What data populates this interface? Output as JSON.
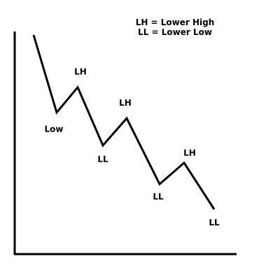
{
  "legend": {
    "line1": "LH = Lower High",
    "line2": "LL = Lower Low"
  },
  "chart_data": {
    "type": "line",
    "title": "",
    "xlabel": "",
    "ylabel": "",
    "grid": false,
    "points": [
      {
        "x": 0,
        "y": 100,
        "label": ""
      },
      {
        "x": 1,
        "y": 60,
        "label": "Low"
      },
      {
        "x": 2,
        "y": 73,
        "label": "LH"
      },
      {
        "x": 3,
        "y": 43,
        "label": "LL"
      },
      {
        "x": 4,
        "y": 57,
        "label": "LH"
      },
      {
        "x": 5,
        "y": 23,
        "label": "LL"
      },
      {
        "x": 6,
        "y": 34,
        "label": "LH"
      },
      {
        "x": 7,
        "y": 10,
        "label": "LL"
      }
    ],
    "colors": {
      "line": "#000000",
      "axis": "#000000"
    }
  }
}
